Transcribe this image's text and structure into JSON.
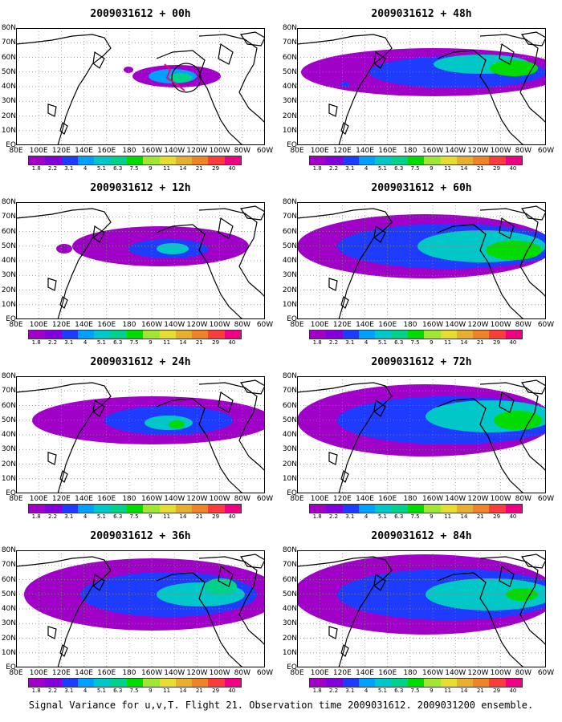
{
  "panels": [
    {
      "title": "2009031612 + 00h"
    },
    {
      "title": "2009031612 + 48h"
    },
    {
      "title": "2009031612 + 12h"
    },
    {
      "title": "2009031612 + 60h"
    },
    {
      "title": "2009031612 + 24h"
    },
    {
      "title": "2009031612 + 72h"
    },
    {
      "title": "2009031612 + 36h"
    },
    {
      "title": "2009031612 + 84h"
    }
  ],
  "axes": {
    "lon_labels": [
      "80E",
      "100E",
      "120E",
      "140E",
      "160E",
      "180",
      "160W",
      "140W",
      "120W",
      "100W",
      "80W",
      "60W"
    ],
    "lat_labels": [
      "80N",
      "70N",
      "60N",
      "50N",
      "40N",
      "30N",
      "20N",
      "10N",
      "EQ"
    ]
  },
  "colorbar": {
    "labels": [
      "1.8",
      "2.2",
      "3.1",
      "4",
      "5.1",
      "6.3",
      "7.5",
      "9",
      "11",
      "14",
      "21",
      "29",
      "40"
    ],
    "colors": [
      "#a000c8",
      "#8200dc",
      "#1e3cff",
      "#00a0ff",
      "#00c8c8",
      "#00d28c",
      "#00dc00",
      "#a0e632",
      "#e6dc32",
      "#e6af2d",
      "#f08228",
      "#fa3c3c",
      "#f00082"
    ]
  },
  "caption": "Signal Variance for u,v,T. Flight 21. Observation time 2009031612. 2009031200 ensemble."
}
